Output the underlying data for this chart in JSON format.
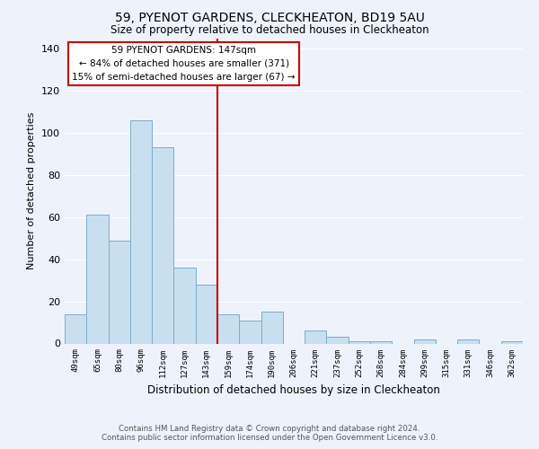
{
  "title": "59, PYENOT GARDENS, CLECKHEATON, BD19 5AU",
  "subtitle": "Size of property relative to detached houses in Cleckheaton",
  "xlabel": "Distribution of detached houses by size in Cleckheaton",
  "ylabel": "Number of detached properties",
  "categories": [
    "49sqm",
    "65sqm",
    "80sqm",
    "96sqm",
    "112sqm",
    "127sqm",
    "143sqm",
    "159sqm",
    "174sqm",
    "190sqm",
    "206sqm",
    "221sqm",
    "237sqm",
    "252sqm",
    "268sqm",
    "284sqm",
    "299sqm",
    "315sqm",
    "331sqm",
    "346sqm",
    "362sqm"
  ],
  "values": [
    14,
    61,
    49,
    106,
    93,
    36,
    28,
    14,
    11,
    15,
    0,
    6,
    3,
    1,
    1,
    0,
    2,
    0,
    2,
    0,
    1
  ],
  "bar_color": "#c8dff0",
  "bar_edge_color": "#7aadcf",
  "vline_x": 6.5,
  "vline_color": "#cc0000",
  "annotation_title": "59 PYENOT GARDENS: 147sqm",
  "annotation_line1": "← 84% of detached houses are smaller (371)",
  "annotation_line2": "15% of semi-detached houses are larger (67) →",
  "annotation_box_color": "#ffffff",
  "annotation_box_edge_color": "#cc0000",
  "ylim": [
    0,
    145
  ],
  "yticks": [
    0,
    20,
    40,
    60,
    80,
    100,
    120,
    140
  ],
  "footer_line1": "Contains HM Land Registry data © Crown copyright and database right 2024.",
  "footer_line2": "Contains public sector information licensed under the Open Government Licence v3.0.",
  "bg_color": "#eef2fb",
  "grid_color": "#ffffff"
}
